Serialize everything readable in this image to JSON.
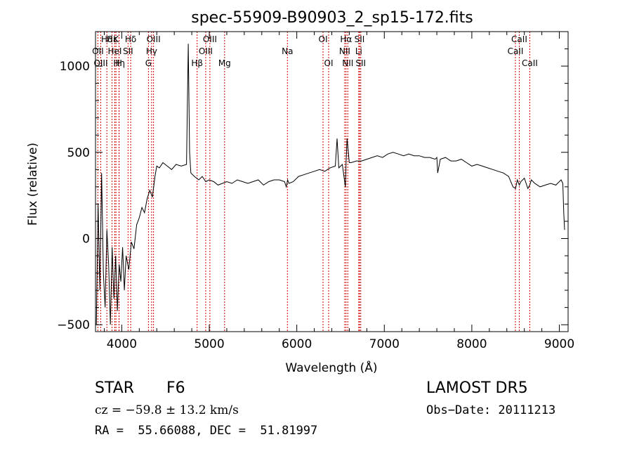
{
  "chart_data": {
    "type": "line",
    "title": "spec-55909-B90903_2_sp15-172.fits",
    "xlabel": "Wavelength (Å)",
    "ylabel": "Flux (relative)",
    "xlim": [
      3700,
      9100
    ],
    "ylim": [
      -540,
      1200
    ],
    "x_ticks": [
      4000,
      5000,
      6000,
      7000,
      8000,
      9000
    ],
    "y_ticks": [
      -500,
      0,
      500,
      1000
    ],
    "grid": false,
    "line_color": "#000000",
    "marker_color": "#cc0000",
    "spectral_lines": [
      {
        "label": "Hδ",
        "wavelength": 3830,
        "row": 0
      },
      {
        "label": "OII",
        "wavelength": 3727,
        "row": 1
      },
      {
        "label": "OIII",
        "wavelength": 3760,
        "row": 2
      },
      {
        "label": "Hε",
        "wavelength": 3889,
        "row": 0
      },
      {
        "label": "K",
        "wavelength": 3934,
        "row": 0
      },
      {
        "label": "HeI",
        "wavelength": 3920,
        "row": 1
      },
      {
        "label": "Hη",
        "wavelength": 3970,
        "row": 2
      },
      {
        "label": "H",
        "wavelength": 3968,
        "row": 2
      },
      {
        "label": "Hδ",
        "wavelength": 4102,
        "row": 0
      },
      {
        "label": "SII",
        "wavelength": 4072,
        "row": 1
      },
      {
        "label": "OIII",
        "wavelength": 4363,
        "row": 0
      },
      {
        "label": "Hγ",
        "wavelength": 4341,
        "row": 1
      },
      {
        "label": "G",
        "wavelength": 4305,
        "row": 2
      },
      {
        "label": "Hβ",
        "wavelength": 4861,
        "row": 2
      },
      {
        "label": "OIII",
        "wavelength": 5007,
        "row": 0
      },
      {
        "label": "OIII",
        "wavelength": 4959,
        "row": 1
      },
      {
        "label": "Mg",
        "wavelength": 5175,
        "row": 2
      },
      {
        "label": "Na",
        "wavelength": 5893,
        "row": 1
      },
      {
        "label": "OI",
        "wavelength": 6300,
        "row": 0
      },
      {
        "label": "OI",
        "wavelength": 6364,
        "row": 2
      },
      {
        "label": "Hα",
        "wavelength": 6563,
        "row": 0
      },
      {
        "label": "NII",
        "wavelength": 6548,
        "row": 1
      },
      {
        "label": "NII",
        "wavelength": 6583,
        "row": 2
      },
      {
        "label": "SII",
        "wavelength": 6717,
        "row": 0
      },
      {
        "label": "Li",
        "wavelength": 6708,
        "row": 1
      },
      {
        "label": "SII",
        "wavelength": 6731,
        "row": 2
      },
      {
        "label": "CaII",
        "wavelength": 8542,
        "row": 0
      },
      {
        "label": "CaII",
        "wavelength": 8498,
        "row": 1
      },
      {
        "label": "CaII",
        "wavelength": 8662,
        "row": 2
      }
    ],
    "series": [
      {
        "x": [
          3710,
          3730,
          3750,
          3770,
          3790,
          3810,
          3830,
          3850,
          3870,
          3890,
          3910,
          3930,
          3950,
          3970,
          3990,
          4010,
          4030,
          4050,
          4080,
          4110,
          4140,
          4170,
          4200,
          4230,
          4260,
          4290,
          4320,
          4350,
          4380,
          4400,
          4430,
          4470,
          4520,
          4570,
          4620,
          4680,
          4740,
          4760,
          4775,
          4790,
          4830,
          4880,
          4920,
          4960,
          5000,
          5050,
          5100,
          5150,
          5200,
          5260,
          5320,
          5380,
          5440,
          5500,
          5560,
          5620,
          5680,
          5740,
          5800,
          5860,
          5880,
          5895,
          5910,
          5960,
          6020,
          6080,
          6140,
          6200,
          6260,
          6320,
          6380,
          6440,
          6460,
          6480,
          6520,
          6555,
          6563,
          6575,
          6600,
          6620,
          6680,
          6740,
          6800,
          6860,
          6920,
          6980,
          7040,
          7100,
          7160,
          7220,
          7280,
          7340,
          7400,
          7460,
          7520,
          7580,
          7600,
          7610,
          7640,
          7700,
          7760,
          7820,
          7880,
          7940,
          8000,
          8060,
          8120,
          8180,
          8240,
          8300,
          8360,
          8420,
          8470,
          8500,
          8520,
          8542,
          8560,
          8600,
          8640,
          8662,
          8680,
          8720,
          8780,
          8840,
          8900,
          8960,
          9000,
          9020,
          9040,
          9050,
          9060
        ],
        "y": [
          -500,
          200,
          -300,
          380,
          -200,
          -400,
          50,
          -150,
          -500,
          -50,
          -350,
          -100,
          -420,
          -150,
          -250,
          -50,
          -300,
          -100,
          -180,
          -20,
          -60,
          80,
          120,
          180,
          150,
          230,
          280,
          240,
          360,
          420,
          410,
          440,
          420,
          400,
          430,
          420,
          430,
          1130,
          500,
          380,
          360,
          340,
          360,
          330,
          340,
          330,
          310,
          320,
          330,
          320,
          340,
          330,
          320,
          330,
          340,
          310,
          330,
          340,
          340,
          330,
          300,
          340,
          320,
          330,
          360,
          370,
          380,
          390,
          400,
          390,
          410,
          420,
          580,
          410,
          430,
          300,
          440,
          580,
          440,
          440,
          450,
          450,
          460,
          470,
          480,
          470,
          490,
          500,
          490,
          480,
          490,
          480,
          480,
          470,
          470,
          460,
          470,
          380,
          460,
          470,
          450,
          450,
          460,
          440,
          420,
          430,
          420,
          410,
          400,
          390,
          380,
          360,
          300,
          290,
          340,
          310,
          330,
          350,
          290,
          310,
          340,
          320,
          300,
          310,
          320,
          310,
          330,
          340,
          320,
          150,
          50
        ]
      }
    ]
  },
  "info": {
    "object_type": "STAR",
    "spectral_class": "F6",
    "survey": "LAMOST DR5",
    "velocity": "cz = −59.8 ± 13.2 km/s",
    "obs_date": "Obs−Date: 20111213",
    "coords": "RA =  55.66088, DEC =  51.81997"
  }
}
